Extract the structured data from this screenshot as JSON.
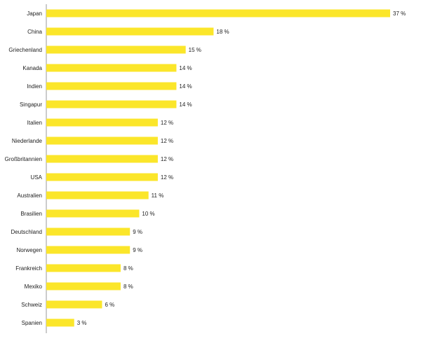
{
  "chart_data": {
    "type": "bar",
    "orientation": "horizontal",
    "categories": [
      "Japan",
      "China",
      "Griechenland",
      "Kanada",
      "Indien",
      "Singapur",
      "Italien",
      "Niederlande",
      "Großbritannien",
      "USA",
      "Australien",
      "Brasilien",
      "Deutschland",
      "Norwegen",
      "Frankreich",
      "Mexiko",
      "Schweiz",
      "Spanien"
    ],
    "values": [
      37,
      18,
      15,
      14,
      14,
      14,
      12,
      12,
      12,
      12,
      11,
      10,
      9,
      9,
      8,
      8,
      6,
      3
    ],
    "value_labels": [
      "37 %",
      "18 %",
      "15 %",
      "14 %",
      "14 %",
      "14 %",
      "12 %",
      "12 %",
      "12 %",
      "12 %",
      "11 %",
      "10 %",
      "9 %",
      "9 %",
      "8 %",
      "8 %",
      "6 %",
      "3 %"
    ],
    "title": "",
    "xlabel": "",
    "ylabel": "",
    "xlim": [
      0,
      37
    ],
    "grid": false,
    "legend": "none",
    "colors": {
      "bar": "#FBE62A",
      "axis": "#999999",
      "text": "#222222"
    }
  }
}
